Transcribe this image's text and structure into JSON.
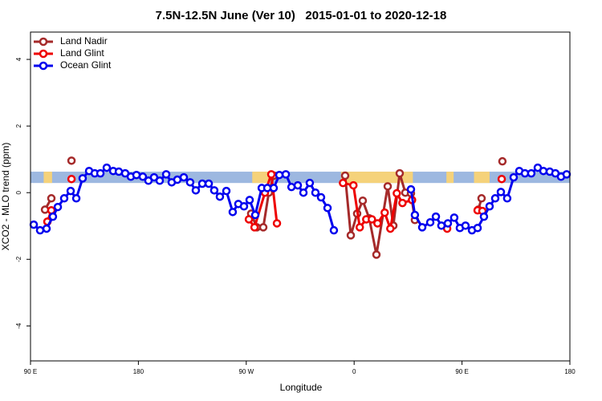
{
  "chart_data": {
    "type": "line",
    "title": "7.5N-12.5N June (Ver 10)   2015-01-01 to 2020-12-18",
    "x_label": "Longitude",
    "y_label": "XCO2 - MLO trend (ppm)",
    "xlim": [
      90,
      540
    ],
    "ylim": [
      -5.05,
      4.82
    ],
    "xticks": [
      {
        "value": 90,
        "label": "90 E"
      },
      180,
      {
        "value": 270,
        "label": "90 W"
      },
      {
        "value": 360,
        "label": "0"
      },
      {
        "value": 450,
        "label": "90 E"
      },
      {
        "value": 540,
        "label": "180"
      }
    ],
    "yticks": [
      -4,
      -2,
      0,
      2,
      4
    ],
    "band": [
      0.29,
      0.63
    ],
    "band_color": "#9db8e0",
    "land_color": "#f5d27a",
    "land_regions": [
      [
        101,
        108
      ],
      [
        275,
        289
      ],
      [
        349,
        409
      ],
      [
        437,
        443
      ],
      [
        460,
        473
      ]
    ],
    "legend": "top-left",
    "series": [
      {
        "name": "Land Nadir",
        "color": "#a52a2a",
        "x": [
          102.1,
          107.4,
          115,
          124.2,
          200,
          274.1,
          278.8,
          284.2,
          288.8,
          292.9,
          330,
          352.5,
          357.2,
          362.5,
          367.2,
          372.6,
          378.6,
          388.0,
          392.7,
          398.0,
          402.7,
          407.4,
          410.7,
          440,
          463.6,
          466.3,
          475,
          483.7
        ],
        "values": [
          -0.51,
          -0.17,
          null,
          0.96,
          null,
          -0.63,
          -1.04,
          -1.04,
          0.0,
          0.51,
          null,
          0.51,
          -1.28,
          -0.63,
          -0.24,
          -0.77,
          -1.86,
          0.19,
          -0.99,
          0.58,
          0.0,
          -0.02,
          -0.82,
          null,
          -0.51,
          -0.17,
          null,
          0.94
        ]
      },
      {
        "name": "Land Glint",
        "color": "#ee0000",
        "x": [
          104.1,
          107.4,
          115,
          124.2,
          200,
          272.2,
          276.9,
          285.6,
          290.9,
          295.6,
          330,
          350.7,
          359.4,
          364.7,
          370.1,
          374.8,
          379.5,
          385.5,
          390.2,
          395.6,
          400.3,
          408.3,
          420,
          437.6,
          450,
          463.0,
          467.0,
          475,
          483.1
        ],
        "values": [
          -0.87,
          -0.53,
          null,
          0.41,
          null,
          -0.8,
          -1.04,
          0.0,
          0.55,
          -0.92,
          null,
          0.29,
          0.22,
          -1.04,
          -0.8,
          -0.8,
          -0.92,
          -0.6,
          -1.08,
          -0.02,
          -0.31,
          -0.22,
          null,
          -1.08,
          null,
          -0.53,
          -0.55,
          null,
          0.41
        ]
      },
      {
        "name": "Ocean Glint",
        "color": "#0000ee",
        "x": [
          92.7,
          98.0,
          103.4,
          108.7,
          112.8,
          118.1,
          123.5,
          128.2,
          133.5,
          138.9,
          143.6,
          148.3,
          153.6,
          159.0,
          163.7,
          169.0,
          173.7,
          178.4,
          183.7,
          188.4,
          193.1,
          197.8,
          203.2,
          207.8,
          212.5,
          217.9,
          223.2,
          227.9,
          233.3,
          238.7,
          243.3,
          248.0,
          253.4,
          258.7,
          263.4,
          268.1,
          272.8,
          277.5,
          282.9,
          287.6,
          292.9,
          297.6,
          303.0,
          307.7,
          313.0,
          317.7,
          323.0,
          327.7,
          332.4,
          337.8,
          343.1,
          375,
          407.4,
          410.7,
          416.8,
          423.5,
          428.2,
          432.8,
          438.2,
          443.5,
          448.2,
          452.9,
          458.3,
          463.0,
          468.3,
          473.0,
          477.7,
          482.4,
          487.7,
          493.1,
          497.8,
          502.5,
          507.8,
          513.2,
          517.9,
          523.2,
          527.9,
          532.6,
          537.3
        ],
        "values": [
          -0.96,
          -1.13,
          -1.08,
          -0.72,
          -0.43,
          -0.17,
          0.05,
          -0.17,
          0.43,
          0.65,
          0.58,
          0.58,
          0.75,
          0.65,
          0.63,
          0.58,
          0.48,
          0.53,
          0.48,
          0.36,
          0.46,
          0.36,
          0.55,
          0.31,
          0.39,
          0.46,
          0.31,
          0.07,
          0.27,
          0.27,
          0.07,
          -0.12,
          0.05,
          -0.58,
          -0.34,
          -0.41,
          -0.22,
          -0.67,
          0.14,
          0.14,
          0.14,
          0.53,
          0.55,
          0.17,
          0.22,
          0.0,
          0.29,
          0.0,
          -0.14,
          -0.46,
          -1.13,
          null,
          0.1,
          -0.67,
          -1.04,
          -0.89,
          -0.72,
          -0.99,
          -0.92,
          -0.75,
          -1.06,
          -0.99,
          -1.13,
          -1.06,
          -0.72,
          -0.41,
          -0.17,
          0.02,
          -0.17,
          0.46,
          0.65,
          0.58,
          0.58,
          0.75,
          0.65,
          0.63,
          0.58,
          0.48,
          0.55
        ]
      }
    ]
  }
}
